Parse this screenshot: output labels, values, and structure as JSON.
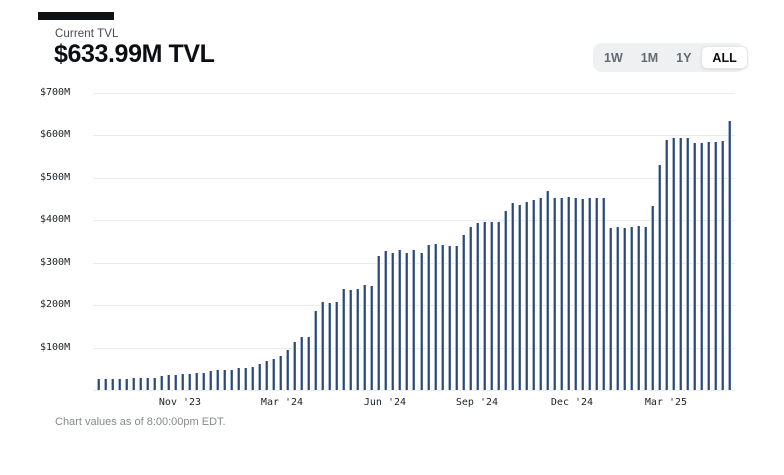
{
  "header": {
    "label": "Current TVL",
    "value": "$633.99M TVL"
  },
  "range_selector": {
    "options": [
      {
        "label": "1W",
        "active": false
      },
      {
        "label": "1M",
        "active": false
      },
      {
        "label": "1Y",
        "active": false
      },
      {
        "label": "ALL",
        "active": true
      }
    ]
  },
  "footer": {
    "note": "Chart values as of 8:00:00pm EDT."
  },
  "colors": {
    "bar_dark": "#2c4875",
    "bar_mid": "#476392",
    "bar_light_edge": "#a9b7cd",
    "gridline": "#e9ebed",
    "selector_bg": "#eef0f2",
    "active_pill_bg": "#ffffff",
    "muted_text": "#63696f",
    "value_text": "#0b0e13"
  },
  "chart_data": {
    "type": "bar",
    "unit": "USD millions (TVL)",
    "ylim": [
      0,
      700
    ],
    "grid": "horizontal",
    "y_ticks": [
      {
        "label": "$700M",
        "value": 700
      },
      {
        "label": "$600M",
        "value": 600
      },
      {
        "label": "$500M",
        "value": 500
      },
      {
        "label": "$400M",
        "value": 400
      },
      {
        "label": "$300M",
        "value": 300
      },
      {
        "label": "$200M",
        "value": 200
      },
      {
        "label": "$100M",
        "value": 100
      }
    ],
    "x_ticks": [
      {
        "label": "Nov '23",
        "pos": 0.1355
      },
      {
        "label": "Mar '24",
        "pos": 0.2944
      },
      {
        "label": "Jun '24",
        "pos": 0.4548
      },
      {
        "label": "Sep '24",
        "pos": 0.5981
      },
      {
        "label": "Dec '24",
        "pos": 0.7461
      },
      {
        "label": "Mar '25",
        "pos": 0.8925
      }
    ],
    "period": "weekly",
    "values": [
      27,
      27,
      27,
      27,
      27,
      28,
      28,
      28,
      29,
      33,
      35,
      36,
      37,
      38,
      39,
      39,
      45,
      46,
      47,
      48,
      52,
      53,
      55,
      62,
      68,
      72,
      80,
      95,
      112,
      125,
      125,
      187,
      208,
      206,
      208,
      237,
      235,
      237,
      248,
      246,
      315,
      327,
      324,
      329,
      324,
      329,
      322,
      341,
      343,
      341,
      339,
      340,
      366,
      384,
      393,
      395,
      395,
      396,
      421,
      440,
      436,
      443,
      447,
      452,
      468,
      452,
      452,
      454,
      453,
      451,
      452,
      452,
      452,
      381,
      384,
      383,
      384,
      386,
      384,
      433,
      531,
      590,
      593,
      593,
      593,
      583,
      583,
      584,
      584,
      588,
      634
    ],
    "current_value_label": "$633.99M TVL"
  }
}
